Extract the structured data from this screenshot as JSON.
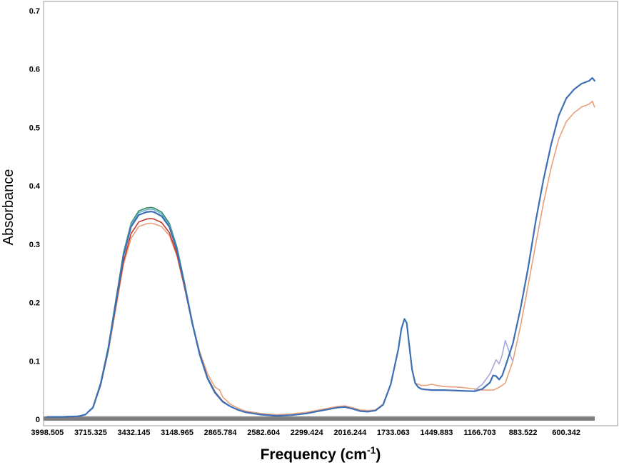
{
  "chart_data": {
    "type": "line",
    "title": "",
    "xlabel": "Frequency (cm",
    "xlabel_sup": "-1",
    "xlabel_close": ")",
    "ylabel": "Absorbance",
    "x_reversed": true,
    "xlim": [
      4000,
      400
    ],
    "ylim": [
      0,
      0.7
    ],
    "y_ticks": [
      0,
      0.1,
      0.2,
      0.3,
      0.4,
      0.5,
      0.6,
      0.7
    ],
    "y_tick_labels": [
      "0",
      "0.1",
      "0.2",
      "0.3",
      "0.4",
      "0.5",
      "0.6",
      "0.7"
    ],
    "x_tick_labels": [
      "3998.505",
      "3715.325",
      "3432.145",
      "3148.965",
      "2865.784",
      "2582.604",
      "2299.424",
      "2016.244",
      "1733.063",
      "1449.883",
      "1166.703",
      "883.522",
      "600.342"
    ],
    "x_tick_values": [
      3998.505,
      3715.325,
      3432.145,
      3148.965,
      2865.784,
      2582.604,
      2299.424,
      2016.244,
      1733.063,
      1449.883,
      1166.703,
      883.522,
      600.342
    ],
    "grid": false,
    "legend": "none",
    "colors": {
      "frame": "#999999",
      "x_axis_bar": "#808080",
      "main_series": "#3c6fb6"
    },
    "series": [
      {
        "color": "#3c6fb6",
        "x": [
          4000,
          3900,
          3800,
          3750,
          3700,
          3650,
          3600,
          3550,
          3500,
          3450,
          3400,
          3350,
          3320,
          3300,
          3250,
          3200,
          3150,
          3100,
          3050,
          3000,
          2950,
          2900,
          2850,
          2800,
          2750,
          2700,
          2600,
          2500,
          2400,
          2300,
          2200,
          2100,
          2050,
          2000,
          1950,
          1900,
          1850,
          1800,
          1750,
          1700,
          1680,
          1660,
          1645,
          1630,
          1610,
          1590,
          1570,
          1550,
          1520,
          1480,
          1450,
          1400,
          1300,
          1200,
          1150,
          1100,
          1080,
          1060,
          1040,
          1020,
          1000,
          950,
          900,
          850,
          800,
          750,
          700,
          650,
          600,
          550,
          500,
          450,
          430,
          415
        ],
        "y": [
          0.004,
          0.004,
          0.005,
          0.008,
          0.02,
          0.06,
          0.12,
          0.2,
          0.28,
          0.33,
          0.35,
          0.355,
          0.356,
          0.355,
          0.348,
          0.33,
          0.29,
          0.23,
          0.165,
          0.11,
          0.07,
          0.045,
          0.03,
          0.022,
          0.016,
          0.012,
          0.008,
          0.006,
          0.007,
          0.01,
          0.015,
          0.02,
          0.021,
          0.018,
          0.014,
          0.013,
          0.015,
          0.025,
          0.06,
          0.12,
          0.155,
          0.172,
          0.165,
          0.13,
          0.085,
          0.062,
          0.055,
          0.052,
          0.051,
          0.05,
          0.05,
          0.05,
          0.049,
          0.048,
          0.052,
          0.063,
          0.075,
          0.074,
          0.068,
          0.075,
          0.09,
          0.13,
          0.19,
          0.26,
          0.34,
          0.41,
          0.47,
          0.52,
          0.55,
          0.565,
          0.575,
          0.58,
          0.585,
          0.58
        ]
      },
      {
        "color": "#e9a07a",
        "x": [
          4000,
          3900,
          3800,
          3750,
          3700,
          3650,
          3600,
          3550,
          3500,
          3450,
          3400,
          3350,
          3320,
          3300,
          3250,
          3200,
          3150,
          3100,
          3050,
          3000,
          2950,
          2900,
          2870,
          2850,
          2800,
          2750,
          2700,
          2600,
          2500,
          2400,
          2300,
          2200,
          2100,
          2050,
          2000,
          1950,
          1900,
          1850,
          1800,
          1750,
          1700,
          1680,
          1660,
          1645,
          1630,
          1610,
          1590,
          1570,
          1550,
          1520,
          1480,
          1450,
          1400,
          1300,
          1200,
          1150,
          1100,
          1080,
          1060,
          1040,
          1020,
          1000,
          950,
          900,
          850,
          800,
          750,
          700,
          650,
          600,
          550,
          500,
          450,
          430,
          415
        ],
        "y": [
          0.004,
          0.004,
          0.005,
          0.008,
          0.02,
          0.058,
          0.115,
          0.19,
          0.265,
          0.31,
          0.33,
          0.335,
          0.336,
          0.335,
          0.33,
          0.315,
          0.28,
          0.225,
          0.165,
          0.115,
          0.078,
          0.055,
          0.05,
          0.038,
          0.026,
          0.019,
          0.014,
          0.01,
          0.008,
          0.009,
          0.012,
          0.017,
          0.022,
          0.023,
          0.02,
          0.016,
          0.015,
          0.016,
          0.026,
          0.06,
          0.12,
          0.155,
          0.172,
          0.165,
          0.13,
          0.085,
          0.062,
          0.06,
          0.058,
          0.058,
          0.06,
          0.058,
          0.056,
          0.055,
          0.052,
          0.05,
          0.05,
          0.05,
          0.052,
          0.055,
          0.058,
          0.062,
          0.1,
          0.16,
          0.23,
          0.3,
          0.37,
          0.43,
          0.48,
          0.51,
          0.525,
          0.535,
          0.54,
          0.545,
          0.535
        ]
      },
      {
        "color": "#c0392b",
        "x": [
          4000,
          3800,
          3750,
          3700,
          3650,
          3600,
          3550,
          3500,
          3450,
          3400,
          3350,
          3320,
          3300,
          3250,
          3200,
          3150,
          3100,
          3050,
          3000,
          2950,
          2900,
          2850,
          2800
        ],
        "y": [
          0.004,
          0.005,
          0.008,
          0.02,
          0.058,
          0.118,
          0.195,
          0.27,
          0.318,
          0.338,
          0.343,
          0.344,
          0.343,
          0.337,
          0.32,
          0.283,
          0.226,
          0.164,
          0.112,
          0.072,
          0.047,
          0.031,
          0.022
        ]
      },
      {
        "color": "#2e8b57",
        "x": [
          4000,
          3800,
          3750,
          3700,
          3650,
          3600,
          3550,
          3500,
          3450,
          3400,
          3350,
          3320,
          3300,
          3250,
          3200,
          3150,
          3100,
          3050,
          3000,
          2950,
          2900,
          2850,
          2800
        ],
        "y": [
          0.004,
          0.005,
          0.008,
          0.021,
          0.062,
          0.124,
          0.205,
          0.285,
          0.336,
          0.357,
          0.362,
          0.363,
          0.362,
          0.355,
          0.336,
          0.295,
          0.234,
          0.168,
          0.112,
          0.071,
          0.046,
          0.03,
          0.022
        ]
      },
      {
        "color": "#a9a9d9",
        "x": [
          1200,
          1150,
          1100,
          1080,
          1060,
          1040,
          1020,
          1000,
          980,
          960,
          950
        ],
        "y": [
          0.05,
          0.06,
          0.078,
          0.09,
          0.102,
          0.095,
          0.11,
          0.135,
          0.12,
          0.105,
          0.1
        ]
      },
      {
        "color": "#6baed6",
        "x": [
          4000,
          3800,
          3750,
          3700,
          3650,
          3600,
          3550,
          3500,
          3450,
          3400,
          3350,
          3320,
          3300,
          3250,
          3200,
          3150,
          3100,
          3050,
          3000,
          2950,
          2900,
          2850,
          2800
        ],
        "y": [
          0.004,
          0.005,
          0.008,
          0.021,
          0.061,
          0.122,
          0.202,
          0.282,
          0.334,
          0.354,
          0.359,
          0.36,
          0.359,
          0.352,
          0.333,
          0.292,
          0.232,
          0.166,
          0.111,
          0.07,
          0.046,
          0.03,
          0.022
        ]
      }
    ]
  }
}
